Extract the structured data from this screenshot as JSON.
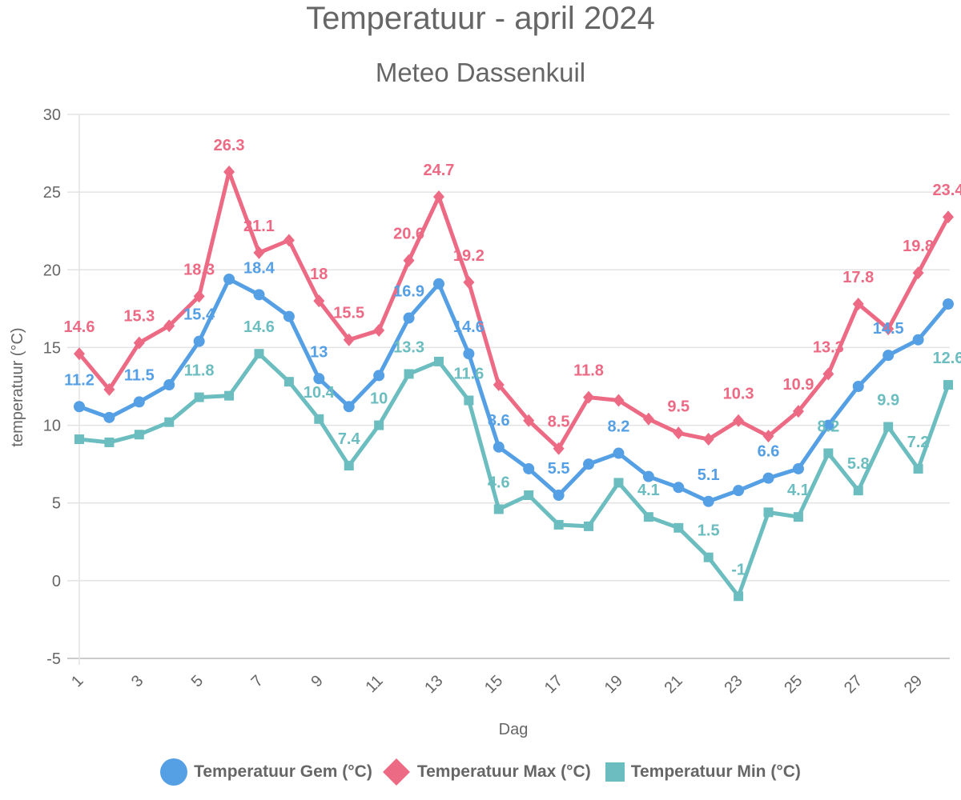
{
  "chart_data": {
    "type": "line",
    "title": "Temperatuur - april 2024",
    "subtitle": "Meteo Dassenkuil",
    "xlabel": "Dag",
    "ylabel": "temperatuur (°C)",
    "x": [
      1,
      2,
      3,
      4,
      5,
      6,
      7,
      8,
      9,
      10,
      11,
      12,
      13,
      14,
      15,
      16,
      17,
      18,
      19,
      20,
      21,
      22,
      23,
      24,
      25,
      26,
      27,
      28,
      29,
      30
    ],
    "x_tick_labels": [
      "1",
      "3",
      "5",
      "7",
      "9",
      "11",
      "13",
      "15",
      "17",
      "19",
      "21",
      "23",
      "25",
      "27",
      "29"
    ],
    "ylim": [
      -5,
      30
    ],
    "y_ticks": [
      -5,
      0,
      5,
      10,
      15,
      20,
      25,
      30
    ],
    "grid": true,
    "legend_position": "bottom",
    "series": [
      {
        "name": "Temperatuur Gem (°C)",
        "color": "#559fe4",
        "marker": "circle",
        "values": [
          11.2,
          10.5,
          11.5,
          12.6,
          15.4,
          19.4,
          18.4,
          17.0,
          13,
          11.2,
          13.2,
          16.9,
          19.1,
          14.6,
          8.6,
          7.2,
          5.5,
          7.5,
          8.2,
          6.7,
          6.0,
          5.1,
          5.8,
          6.6,
          7.2,
          10.0,
          12.5,
          14.5,
          15.5,
          17.8
        ],
        "labeled_days": [
          1,
          3,
          5,
          7,
          9,
          12,
          14,
          15,
          17,
          19,
          22,
          24,
          28
        ]
      },
      {
        "name": "Temperatuur Max (°C)",
        "color": "#ed6a85",
        "marker": "diamond",
        "values": [
          14.6,
          12.3,
          15.3,
          16.4,
          18.3,
          26.3,
          21.1,
          21.9,
          18,
          15.5,
          16.1,
          20.6,
          24.7,
          19.2,
          12.6,
          10.3,
          8.5,
          11.8,
          11.6,
          10.4,
          9.5,
          9.1,
          10.3,
          9.3,
          10.9,
          13.3,
          17.8,
          16.2,
          19.8,
          23.4
        ],
        "labeled_days": [
          1,
          3,
          5,
          6,
          7,
          9,
          10,
          12,
          13,
          14,
          17,
          18,
          21,
          23,
          25,
          26,
          27,
          29,
          30
        ]
      },
      {
        "name": "Temperatuur Min (°C)",
        "color": "#6cbdbf",
        "marker": "square",
        "values": [
          9.1,
          8.9,
          9.4,
          10.2,
          11.8,
          11.9,
          14.6,
          12.8,
          10.4,
          7.4,
          10,
          13.3,
          14.1,
          11.6,
          4.6,
          5.5,
          3.6,
          3.5,
          6.3,
          4.1,
          3.4,
          1.5,
          -1,
          4.4,
          4.1,
          8.2,
          5.8,
          9.9,
          7.2,
          12.6
        ],
        "labeled_days": [
          5,
          7,
          9,
          10,
          11,
          12,
          14,
          15,
          20,
          22,
          23,
          25,
          26,
          27,
          28,
          29,
          30
        ]
      }
    ]
  }
}
